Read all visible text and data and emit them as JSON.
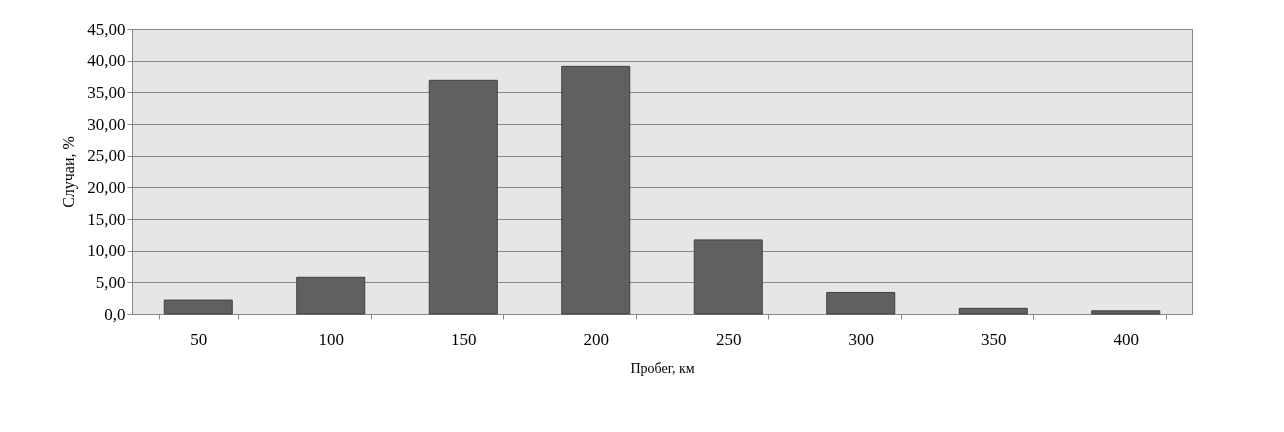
{
  "chart_data": {
    "type": "bar",
    "xlabel": "Пробег, км",
    "ylabel": "Случаи, %",
    "categories": [
      "50",
      "100",
      "150",
      "200",
      "250",
      "300",
      "350",
      "400"
    ],
    "values": [
      2.2,
      5.8,
      36.9,
      39.1,
      11.7,
      3.4,
      0.9,
      0.5
    ],
    "color": "#606060",
    "ylim": [
      0,
      45
    ],
    "yticks": [
      {
        "value": 0,
        "label": "0,0"
      },
      {
        "value": 5,
        "label": "5,00"
      },
      {
        "value": 10,
        "label": "10,00"
      },
      {
        "value": 15,
        "label": "15,00"
      },
      {
        "value": 20,
        "label": "20,00"
      },
      {
        "value": 25,
        "label": "25,00"
      },
      {
        "value": 30,
        "label": "30,00"
      },
      {
        "value": 35,
        "label": "35,00"
      },
      {
        "value": 40,
        "label": "40,00"
      },
      {
        "value": 45,
        "label": "45,00"
      }
    ],
    "grid": "y"
  }
}
